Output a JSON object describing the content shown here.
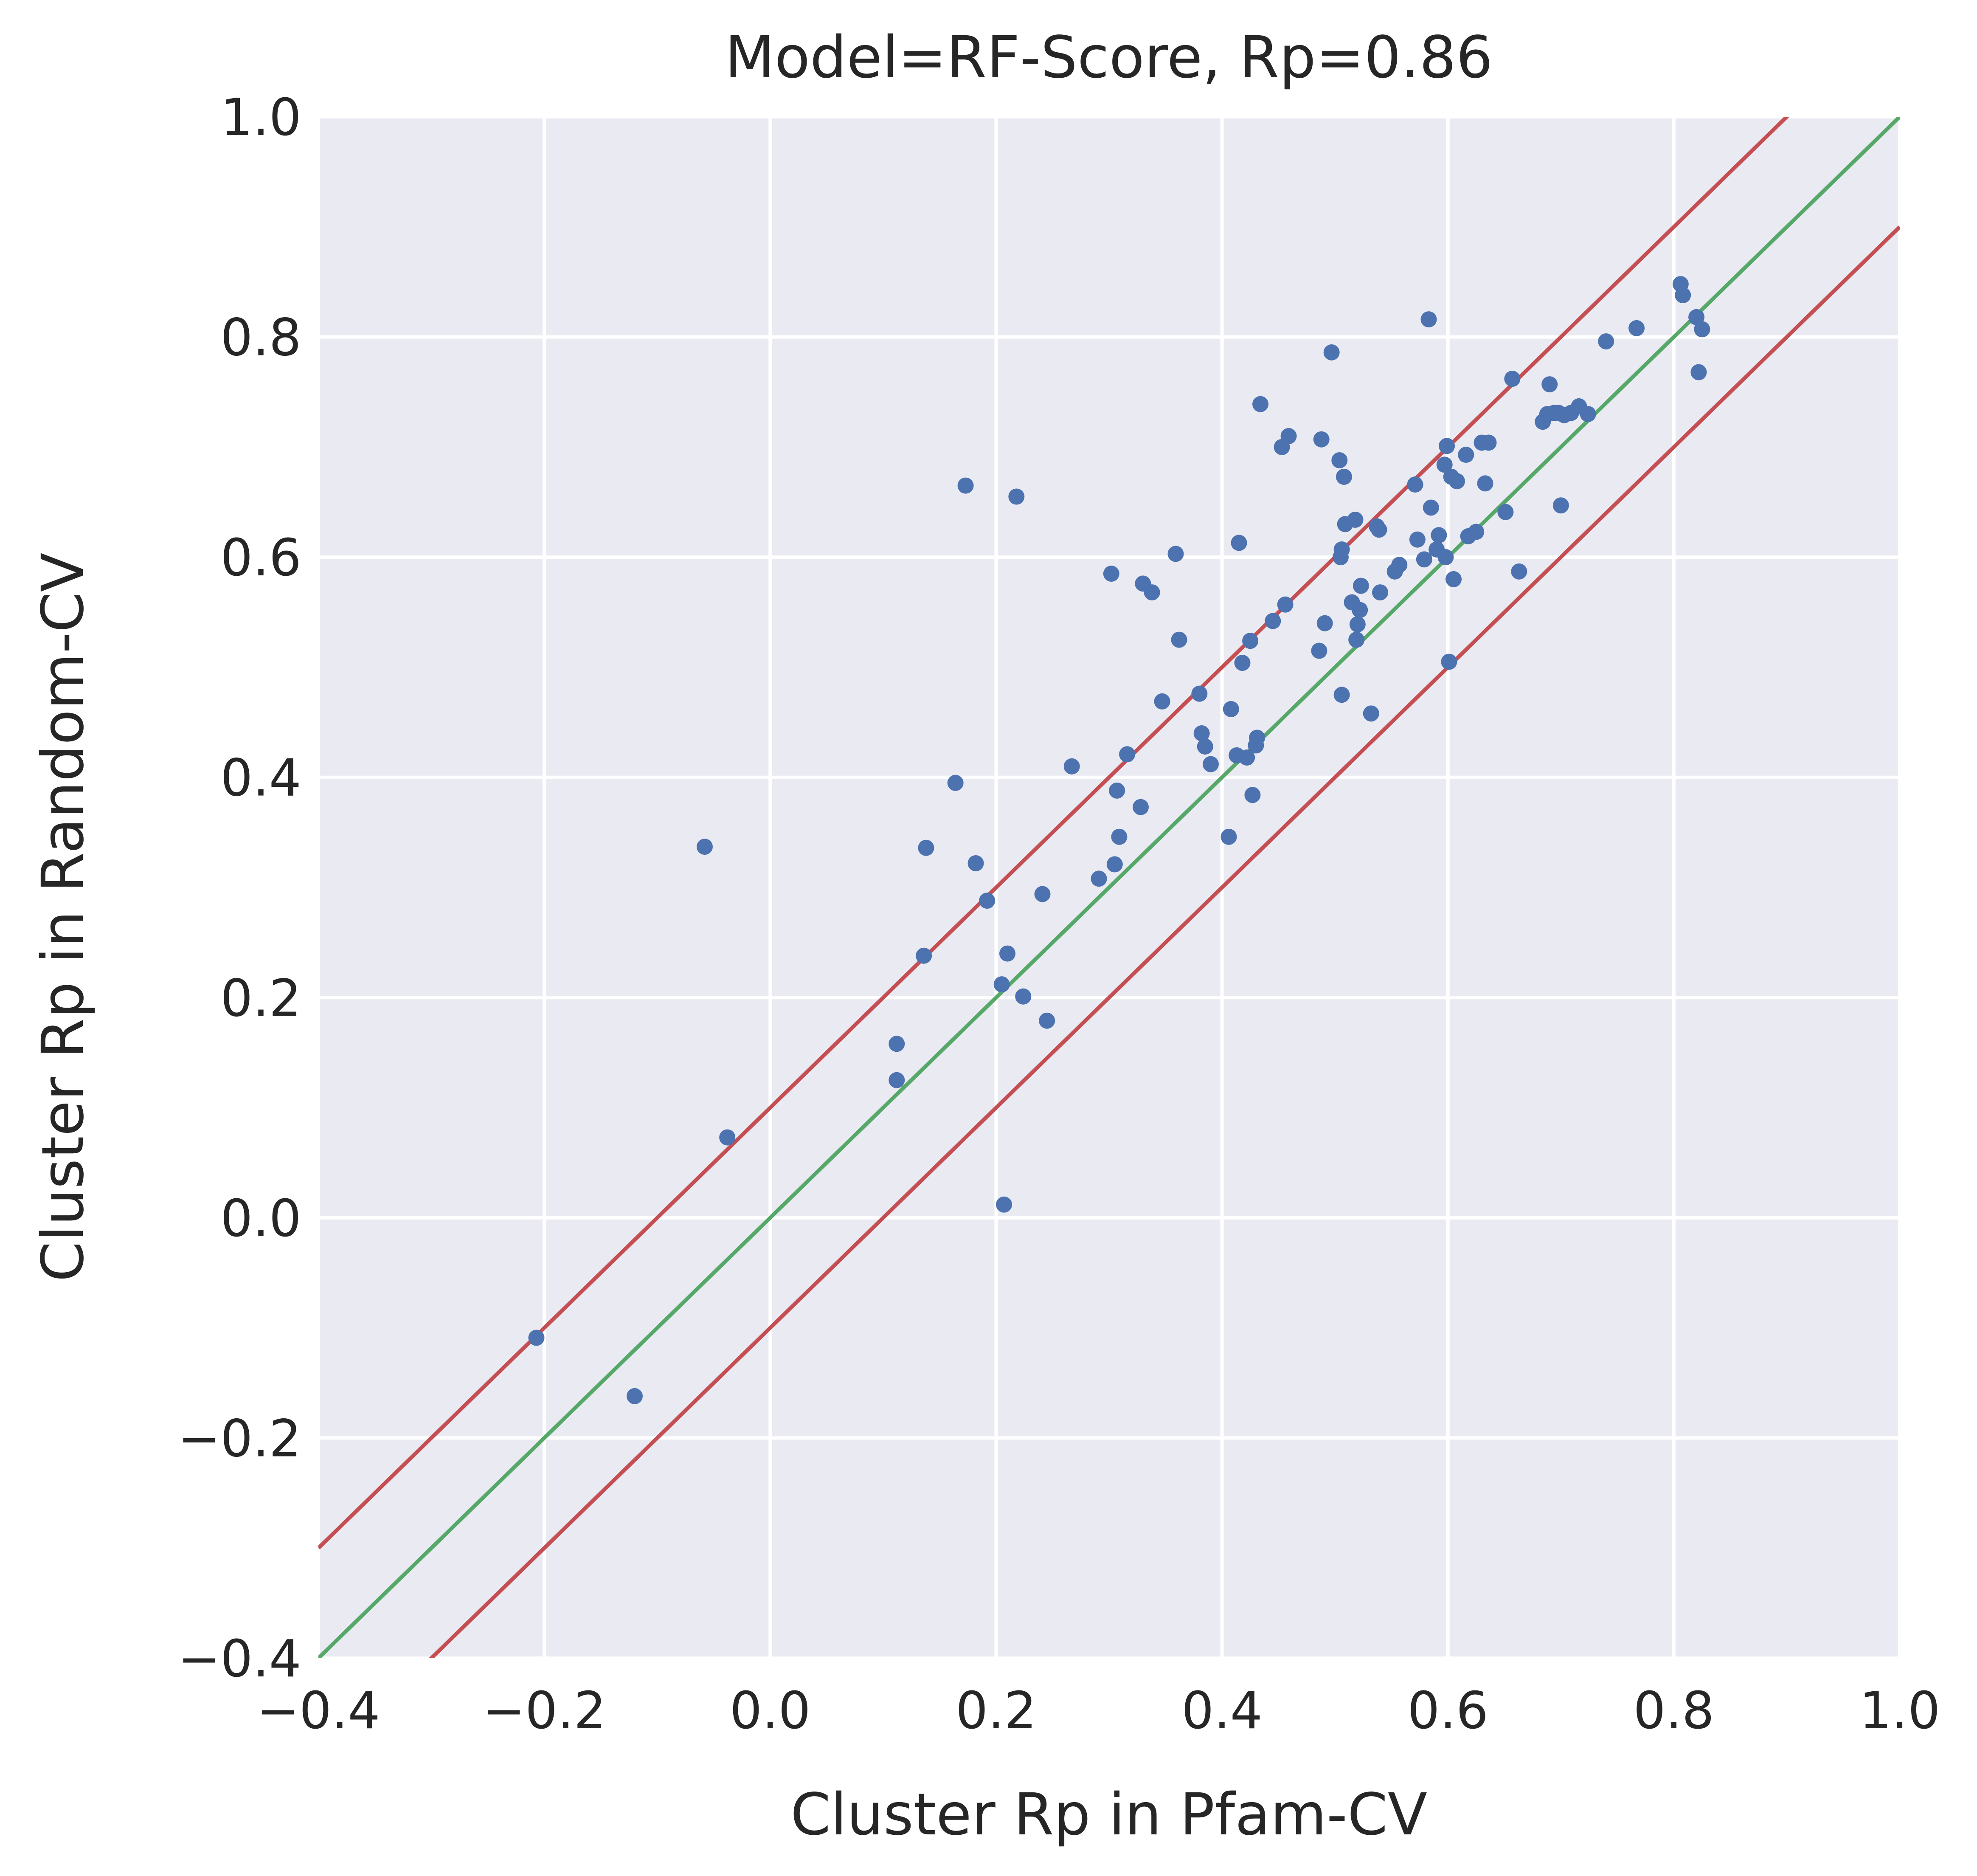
{
  "chart_data": {
    "type": "scatter",
    "title": "Model=RF-Score, Rp=0.86",
    "xlabel": "Cluster Rp in Pfam-CV",
    "ylabel": "Cluster Rp in Random-CV",
    "xlim": [
      -0.4,
      1.0
    ],
    "ylim": [
      -0.4,
      1.0
    ],
    "x_ticks": [
      -0.4,
      -0.2,
      0.0,
      0.2,
      0.4,
      0.6,
      0.8,
      1.0
    ],
    "y_ticks": [
      -0.4,
      -0.2,
      0.0,
      0.2,
      0.4,
      0.6,
      0.8,
      1.0
    ],
    "x_tick_labels": [
      "−0.4",
      "−0.2",
      "0.0",
      "0.2",
      "0.4",
      "0.6",
      "0.8",
      "1.0"
    ],
    "y_tick_labels": [
      "−0.4",
      "−0.2",
      "0.0",
      "0.2",
      "0.4",
      "0.6",
      "0.8",
      "1.0"
    ],
    "grid": true,
    "reference_lines": [
      {
        "intercept": 0.1,
        "slope": 1,
        "color": "#c44e52"
      },
      {
        "intercept": 0.0,
        "slope": 1,
        "color": "#55a868"
      },
      {
        "intercept": -0.1,
        "slope": 1,
        "color": "#c44e52"
      }
    ],
    "series": [
      {
        "color": "#4c72b0",
        "points": [
          [
            -0.207,
            -0.109
          ],
          [
            -0.12,
            -0.162
          ],
          [
            -0.058,
            0.337
          ],
          [
            -0.038,
            0.073
          ],
          [
            0.112,
            0.158
          ],
          [
            0.112,
            0.125
          ],
          [
            0.136,
            0.238
          ],
          [
            0.138,
            0.336
          ],
          [
            0.164,
            0.395
          ],
          [
            0.173,
            0.665
          ],
          [
            0.182,
            0.322
          ],
          [
            0.192,
            0.288
          ],
          [
            0.205,
            0.212
          ],
          [
            0.207,
            0.012
          ],
          [
            0.21,
            0.24
          ],
          [
            0.218,
            0.655
          ],
          [
            0.224,
            0.201
          ],
          [
            0.241,
            0.294
          ],
          [
            0.245,
            0.179
          ],
          [
            0.267,
            0.41
          ],
          [
            0.291,
            0.308
          ],
          [
            0.302,
            0.585
          ],
          [
            0.305,
            0.321
          ],
          [
            0.307,
            0.388
          ],
          [
            0.309,
            0.346
          ],
          [
            0.316,
            0.421
          ],
          [
            0.328,
            0.373
          ],
          [
            0.33,
            0.576
          ],
          [
            0.338,
            0.568
          ],
          [
            0.347,
            0.469
          ],
          [
            0.359,
            0.603
          ],
          [
            0.362,
            0.525
          ],
          [
            0.38,
            0.476
          ],
          [
            0.382,
            0.44
          ],
          [
            0.385,
            0.428
          ],
          [
            0.39,
            0.412
          ],
          [
            0.406,
            0.346
          ],
          [
            0.408,
            0.462
          ],
          [
            0.413,
            0.42
          ],
          [
            0.415,
            0.613
          ],
          [
            0.418,
            0.504
          ],
          [
            0.422,
            0.418
          ],
          [
            0.425,
            0.524
          ],
          [
            0.427,
            0.384
          ],
          [
            0.43,
            0.429
          ],
          [
            0.431,
            0.436
          ],
          [
            0.434,
            0.739
          ],
          [
            0.445,
            0.542
          ],
          [
            0.453,
            0.7
          ],
          [
            0.456,
            0.557
          ],
          [
            0.459,
            0.71
          ],
          [
            0.486,
            0.515
          ],
          [
            0.488,
            0.707
          ],
          [
            0.491,
            0.54
          ],
          [
            0.497,
            0.786
          ],
          [
            0.504,
            0.688
          ],
          [
            0.505,
            0.6
          ],
          [
            0.506,
            0.607
          ],
          [
            0.506,
            0.475
          ],
          [
            0.508,
            0.673
          ],
          [
            0.509,
            0.63
          ],
          [
            0.515,
            0.559
          ],
          [
            0.518,
            0.634
          ],
          [
            0.519,
            0.525
          ],
          [
            0.52,
            0.539
          ],
          [
            0.522,
            0.552
          ],
          [
            0.523,
            0.574
          ],
          [
            0.532,
            0.458
          ],
          [
            0.537,
            0.628
          ],
          [
            0.539,
            0.625
          ],
          [
            0.54,
            0.568
          ],
          [
            0.553,
            0.587
          ],
          [
            0.557,
            0.593
          ],
          [
            0.571,
            0.666
          ],
          [
            0.573,
            0.616
          ],
          [
            0.579,
            0.598
          ],
          [
            0.583,
            0.816
          ],
          [
            0.585,
            0.645
          ],
          [
            0.59,
            0.607
          ],
          [
            0.592,
            0.62
          ],
          [
            0.597,
            0.684
          ],
          [
            0.598,
            0.6
          ],
          [
            0.599,
            0.701
          ],
          [
            0.601,
            0.505
          ],
          [
            0.603,
            0.673
          ],
          [
            0.605,
            0.58
          ],
          [
            0.608,
            0.669
          ],
          [
            0.616,
            0.693
          ],
          [
            0.618,
            0.619
          ],
          [
            0.625,
            0.623
          ],
          [
            0.63,
            0.704
          ],
          [
            0.633,
            0.667
          ],
          [
            0.636,
            0.704
          ],
          [
            0.651,
            0.641
          ],
          [
            0.657,
            0.762
          ],
          [
            0.663,
            0.587
          ],
          [
            0.684,
            0.723
          ],
          [
            0.688,
            0.73
          ],
          [
            0.69,
            0.757
          ],
          [
            0.694,
            0.731
          ],
          [
            0.698,
            0.731
          ],
          [
            0.7,
            0.647
          ],
          [
            0.703,
            0.729
          ],
          [
            0.709,
            0.731
          ],
          [
            0.716,
            0.737
          ],
          [
            0.724,
            0.73
          ],
          [
            0.74,
            0.796
          ],
          [
            0.767,
            0.808
          ],
          [
            0.806,
            0.848
          ],
          [
            0.808,
            0.838
          ],
          [
            0.82,
            0.818
          ],
          [
            0.822,
            0.768
          ],
          [
            0.825,
            0.807
          ]
        ]
      }
    ]
  }
}
